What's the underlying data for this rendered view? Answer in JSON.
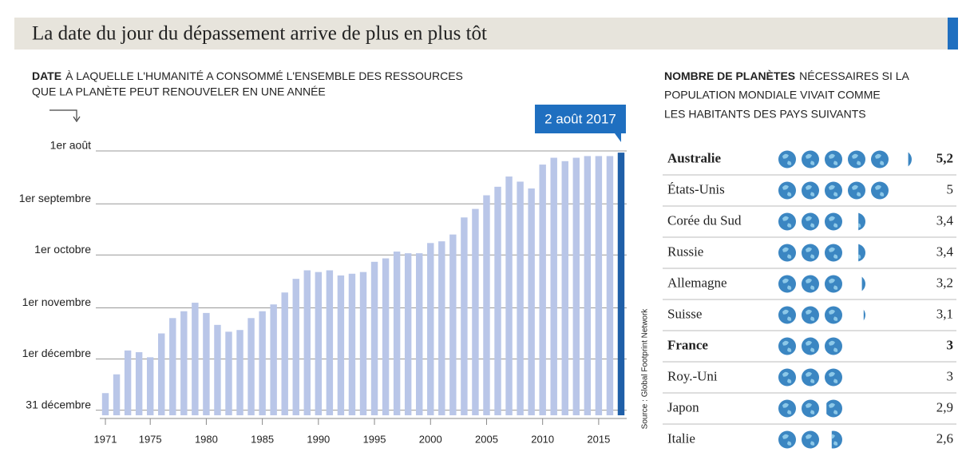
{
  "title": "La date du jour du dépassement arrive de plus en plus tôt",
  "chart_data": [
    {
      "type": "bar",
      "subtitle_bold": "DATE",
      "subtitle_lines": [
        "À LAQUELLE L'HUMANITÉ A CONSOMMÉ L'ENSEMBLE DES RESSOURCES",
        "QUE LA PLANÈTE PEUT RENOUVELER EN UNE ANNÉE"
      ],
      "annotation": "2 août 2017",
      "source": "Source : Global Footprint Network",
      "categories": [
        "1971",
        null,
        null,
        null,
        "1975",
        null,
        null,
        null,
        null,
        "1980",
        null,
        null,
        null,
        null,
        "1985",
        null,
        null,
        null,
        null,
        "1990",
        null,
        null,
        null,
        null,
        "1995",
        null,
        null,
        null,
        null,
        "2000",
        null,
        null,
        null,
        null,
        "2005",
        null,
        null,
        null,
        null,
        "2010",
        null,
        null,
        null,
        null,
        "2015",
        null,
        null
      ],
      "values": [
        355,
        344,
        330,
        331,
        334,
        320,
        311,
        307,
        302,
        308,
        315,
        319,
        318,
        311,
        307,
        303,
        296,
        288,
        283,
        284,
        283,
        286,
        285,
        284,
        278,
        276,
        272,
        273,
        273,
        267,
        266,
        262,
        252,
        247,
        239,
        234,
        228,
        231,
        235,
        221,
        217,
        219,
        217,
        216,
        216,
        216,
        214
      ],
      "colors": [
        "#b9c6e8",
        "#b9c6e8",
        "#b9c6e8",
        "#b9c6e8",
        "#b9c6e8",
        "#b9c6e8",
        "#b9c6e8",
        "#b9c6e8",
        "#b9c6e8",
        "#b9c6e8",
        "#b9c6e8",
        "#b9c6e8",
        "#b9c6e8",
        "#b9c6e8",
        "#b9c6e8",
        "#b9c6e8",
        "#b9c6e8",
        "#b9c6e8",
        "#b9c6e8",
        "#b9c6e8",
        "#b9c6e8",
        "#b9c6e8",
        "#b9c6e8",
        "#b9c6e8",
        "#b9c6e8",
        "#b9c6e8",
        "#b9c6e8",
        "#b9c6e8",
        "#b9c6e8",
        "#b9c6e8",
        "#b9c6e8",
        "#b9c6e8",
        "#b9c6e8",
        "#b9c6e8",
        "#b9c6e8",
        "#b9c6e8",
        "#b9c6e8",
        "#b9c6e8",
        "#b9c6e8",
        "#b9c6e8",
        "#b9c6e8",
        "#b9c6e8",
        "#b9c6e8",
        "#b9c6e8",
        "#b9c6e8",
        "#b9c6e8",
        "#1f5fa8"
      ],
      "ylim": [
        368,
        213
      ],
      "yticks": [
        {
          "value": 213,
          "label": "1er août"
        },
        {
          "value": 244,
          "label": "1er septembre"
        },
        {
          "value": 274,
          "label": "1er octobre"
        },
        {
          "value": 305,
          "label": "1er novembre"
        },
        {
          "value": 335,
          "label": "1er décembre"
        },
        {
          "value": 365,
          "label": "31 décembre"
        }
      ],
      "grid": true
    },
    {
      "type": "pictogram",
      "title_bold": "NOMBRE DE PLANÈTES",
      "title_lines": [
        "NÉCESSAIRES SI LA",
        "POPULATION MONDIALE VIVAIT COMME",
        "LES HABITANTS DES PAYS SUIVANTS"
      ],
      "categories": [
        "Australie",
        "États-Unis",
        "Corée du Sud",
        "Russie",
        "Allemagne",
        "Suisse",
        "France",
        "Roy.-Uni",
        "Japon",
        "Italie"
      ],
      "values": [
        5.2,
        5,
        3.4,
        3.4,
        3.2,
        3.1,
        3,
        3,
        2.9,
        2.6
      ],
      "value_labels": [
        "5,2",
        "5",
        "3,4",
        "3,4",
        "3,2",
        "3,1",
        "3",
        "3",
        "2,9",
        "2,6"
      ],
      "emphasis": [
        true,
        false,
        false,
        false,
        false,
        false,
        true,
        false,
        false,
        false
      ],
      "color": "#3b86c2"
    }
  ]
}
